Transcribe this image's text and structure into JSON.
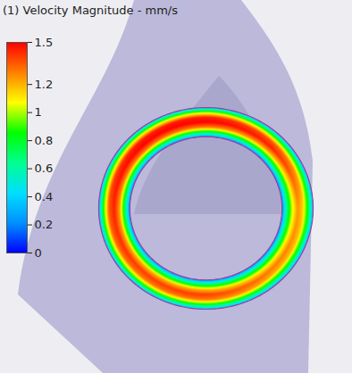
{
  "chart_data": {
    "type": "contour",
    "title": "(1) Velocity Magnitude - mm/s",
    "tick_labels": false,
    "colorbar": {
      "range": [
        0,
        1.5
      ],
      "ticks": [
        0,
        0.2,
        0.4,
        0.6,
        0.8,
        1,
        1.2,
        1.5
      ]
    },
    "cells": [
      [
        0.2,
        0.7,
        1.05,
        1.25,
        1.15,
        0.8,
        0.3
      ],
      [
        0.2,
        0.75,
        1.2,
        1.45,
        1.35,
        0.9,
        0.3
      ],
      [
        0.2,
        0.8,
        1.3,
        1.5,
        1.45,
        1.0,
        0.35
      ],
      [
        0.2,
        0.8,
        1.3,
        1.5,
        1.45,
        1.0,
        0.35
      ],
      [
        0.2,
        0.75,
        1.25,
        1.45,
        1.35,
        0.9,
        0.3
      ],
      [
        0.2,
        0.75,
        1.2,
        1.4,
        1.3,
        0.9,
        0.3
      ],
      [
        0.2,
        0.75,
        1.2,
        1.4,
        1.3,
        0.85,
        0.3
      ],
      [
        0.2,
        0.7,
        1.1,
        1.3,
        1.2,
        0.8,
        0.3
      ]
    ]
  }
}
